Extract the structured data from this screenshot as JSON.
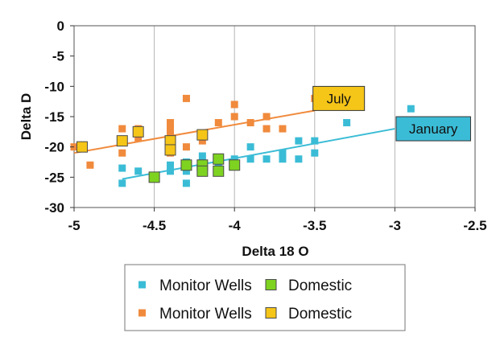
{
  "chart_data": {
    "type": "scatter",
    "title": "",
    "xlabel": "Delta 18 O",
    "ylabel": "Delta D",
    "xlim": [
      -5,
      -2.5
    ],
    "ylim": [
      -30,
      0
    ],
    "xticks": [
      -5,
      -4.5,
      -4,
      -3.5,
      -3,
      -2.5
    ],
    "xtick_labels": [
      "-5",
      "-4.5",
      "-4",
      "-3.5",
      "-3",
      "-2.5"
    ],
    "yticks": [
      0,
      -5,
      -10,
      -15,
      -20,
      -25,
      -30
    ],
    "ytick_labels": [
      "0",
      "-5",
      "-10",
      "-15",
      "-20",
      "-25",
      "-30"
    ],
    "grid": "vertical",
    "legend_position": "bottom",
    "series": [
      {
        "name": "Monitor Wells",
        "color": "#3bbcd6",
        "marker": "small-square",
        "season": "January",
        "points": [
          [
            -4.7,
            -26
          ],
          [
            -4.7,
            -23.5
          ],
          [
            -4.6,
            -24
          ],
          [
            -4.4,
            -24
          ],
          [
            -4.4,
            -23
          ],
          [
            -4.3,
            -26
          ],
          [
            -4.3,
            -24
          ],
          [
            -4.3,
            -22.5
          ],
          [
            -4.2,
            -24
          ],
          [
            -4.2,
            -21.5
          ],
          [
            -4.1,
            -24
          ],
          [
            -4.1,
            -22.5
          ],
          [
            -4.0,
            -22
          ],
          [
            -3.9,
            -22
          ],
          [
            -3.9,
            -20
          ],
          [
            -3.8,
            -22
          ],
          [
            -3.7,
            -22
          ],
          [
            -3.7,
            -21
          ],
          [
            -3.6,
            -22
          ],
          [
            -3.6,
            -19
          ],
          [
            -3.5,
            -19
          ],
          [
            -3.5,
            -21
          ],
          [
            -3.3,
            -16
          ],
          [
            -2.9,
            -13.7
          ]
        ]
      },
      {
        "name": "Domestic",
        "color": "#7ed321",
        "marker": "large-square",
        "season": "January",
        "points": [
          [
            -4.5,
            -25
          ],
          [
            -4.3,
            -23
          ],
          [
            -4.2,
            -23
          ],
          [
            -4.2,
            -24
          ],
          [
            -4.1,
            -22
          ],
          [
            -4.1,
            -24
          ],
          [
            -4.0,
            -23
          ]
        ]
      },
      {
        "name": "Monitor Wells",
        "color": "#f08a3c",
        "marker": "small-square",
        "season": "July",
        "points": [
          [
            -5.0,
            -20
          ],
          [
            -4.9,
            -23
          ],
          [
            -4.7,
            -17
          ],
          [
            -4.7,
            -19
          ],
          [
            -4.7,
            -21
          ],
          [
            -4.6,
            -17
          ],
          [
            -4.6,
            -18.5
          ],
          [
            -4.4,
            -16
          ],
          [
            -4.4,
            -17
          ],
          [
            -4.4,
            -18
          ],
          [
            -4.4,
            -21
          ],
          [
            -4.3,
            -12
          ],
          [
            -4.3,
            -20
          ],
          [
            -4.2,
            -19
          ],
          [
            -4.1,
            -16
          ],
          [
            -4.0,
            -13
          ],
          [
            -4.0,
            -15
          ],
          [
            -3.9,
            -16
          ],
          [
            -3.8,
            -15
          ],
          [
            -3.8,
            -17
          ],
          [
            -3.7,
            -17
          ],
          [
            -3.5,
            -12
          ]
        ]
      },
      {
        "name": "Domestic",
        "color": "#f5c518",
        "marker": "large-square",
        "season": "July",
        "points": [
          [
            -4.95,
            -20
          ],
          [
            -4.7,
            -19
          ],
          [
            -4.6,
            -17.5
          ],
          [
            -4.4,
            -19
          ],
          [
            -4.4,
            -20.5
          ],
          [
            -4.2,
            -18
          ]
        ]
      }
    ],
    "trendlines": [
      {
        "label": "July",
        "color": "#f08a3c",
        "x": [
          -5.0,
          -3.5
        ],
        "y": [
          -21,
          -14
        ]
      },
      {
        "label": "January",
        "color": "#3bbcd6",
        "x": [
          -4.7,
          -3.0
        ],
        "y": [
          -25.3,
          -17
        ]
      }
    ],
    "callouts": [
      {
        "text": "July",
        "color": "#f5c518",
        "x": -3.35,
        "y": -12
      },
      {
        "text": "January",
        "color": "#3bbcd6",
        "x": -2.76,
        "y": -17
      }
    ],
    "legend": [
      {
        "label": "Monitor Wells",
        "color": "#3bbcd6",
        "marker": "small-square"
      },
      {
        "label": "Domestic",
        "color": "#7ed321",
        "marker": "large-square"
      },
      {
        "label": "Monitor Wells",
        "color": "#f08a3c",
        "marker": "small-square"
      },
      {
        "label": "Domestic",
        "color": "#f5c518",
        "marker": "large-square"
      }
    ]
  }
}
